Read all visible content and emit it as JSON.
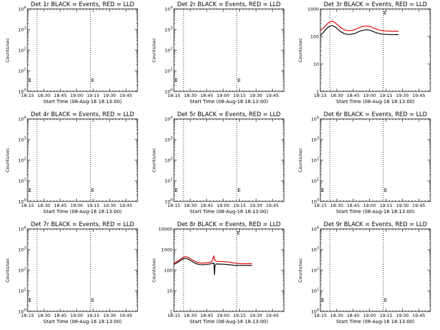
{
  "chart_data": [
    {
      "id": "det1r",
      "type": "line",
      "title": "Det 1r BLACK = Events, RED = LLD",
      "xlabel": "Start Time (08-Aug-16 18:13:00)",
      "ylabel": "Counts/sec",
      "yscale": "log",
      "ylim_exp": [
        0,
        4
      ],
      "ytick_exp": [
        0,
        1,
        2,
        3,
        4
      ],
      "xtick_labels": [
        "18:15",
        "18:30",
        "18:45",
        "19:00",
        "19:15",
        "19:30",
        "19:45"
      ],
      "xlim_minutes": [
        15,
        53
      ],
      "vlines_minutes": [
        18.3,
        36.7
      ],
      "series": [],
      "markers": [
        {
          "label": "E",
          "x_min": 15.3
        },
        {
          "label": "E",
          "x_min": 37.0
        }
      ]
    },
    {
      "id": "det2r",
      "type": "line",
      "title": "Det 2r BLACK = Events, RED = LLD",
      "xlabel": "Start Time (08-Aug-16 18:13:00)",
      "ylabel": "Counts/sec",
      "yscale": "log",
      "ylim_exp": [
        0,
        4
      ],
      "ytick_exp": [
        0,
        1,
        2,
        3,
        4
      ],
      "xtick_labels": [
        "18:15",
        "18:30",
        "18:45",
        "19:00",
        "19:15",
        "19:30",
        "19:45"
      ],
      "xlim_minutes": [
        15,
        53
      ],
      "vlines_minutes": [
        18.3,
        36.7
      ],
      "series": [],
      "markers": [
        {
          "label": "E",
          "x_min": 15.3
        },
        {
          "label": "E",
          "x_min": 37.0
        }
      ]
    },
    {
      "id": "det3r",
      "type": "line",
      "title": "Det 3r BLACK = Events, RED = LLD",
      "xlabel": "Start Time (08-Aug-16 18:13:00)",
      "ylabel": "Counts/sec",
      "yscale": "log",
      "ylim": [
        1,
        1000
      ],
      "yticks": [
        1,
        10,
        100,
        1000
      ],
      "ytick_labels": [
        "1",
        "10",
        "100",
        "1000"
      ],
      "xtick_labels": [
        "18:15",
        "18:30",
        "18:45",
        "19:00",
        "19:15",
        "19:30",
        "19:45"
      ],
      "xlim_minutes": [
        15,
        53
      ],
      "vlines_minutes": [
        18.3,
        36.7
      ],
      "series": [
        {
          "color": "#e00000",
          "x": [
            15,
            16,
            17,
            18,
            19,
            20,
            21,
            22,
            23,
            24,
            25,
            26,
            27,
            28,
            29,
            30,
            31,
            32,
            33,
            34,
            35,
            36,
            37,
            38,
            39,
            40,
            41,
            42
          ],
          "values": [
            160,
            200,
            260,
            330,
            360,
            320,
            260,
            210,
            180,
            165,
            160,
            165,
            180,
            200,
            220,
            235,
            240,
            230,
            210,
            190,
            175,
            165,
            160,
            158,
            156,
            155,
            155,
            155
          ]
        },
        {
          "color": "#000000",
          "x": [
            15,
            16,
            17,
            18,
            19,
            20,
            21,
            22,
            23,
            24,
            25,
            26,
            27,
            28,
            29,
            30,
            31,
            32,
            33,
            34,
            35,
            36,
            37,
            38,
            39,
            40,
            41,
            42
          ],
          "values": [
            110,
            140,
            185,
            230,
            250,
            225,
            185,
            150,
            130,
            120,
            118,
            122,
            130,
            145,
            160,
            170,
            175,
            170,
            155,
            140,
            130,
            123,
            120,
            118,
            117,
            117,
            116,
            116
          ]
        }
      ],
      "markers": [
        {
          "label": "E",
          "x_min": 36.8
        }
      ]
    },
    {
      "id": "det4r",
      "type": "line",
      "title": "Det 4r BLACK = Events, RED = LLD",
      "xlabel": "Start Time (08-Aug-16 18:13:00)",
      "ylabel": "Counts/sec",
      "yscale": "log",
      "ylim_exp": [
        0,
        4
      ],
      "ytick_exp": [
        0,
        1,
        2,
        3,
        4
      ],
      "xtick_labels": [
        "18:15",
        "18:30",
        "18:45",
        "19:00",
        "19:15",
        "19:30",
        "19:45"
      ],
      "xlim_minutes": [
        15,
        53
      ],
      "vlines_minutes": [
        18.3,
        36.7
      ],
      "series": [],
      "markers": [
        {
          "label": "E",
          "x_min": 15.3
        },
        {
          "label": "E",
          "x_min": 37.0
        }
      ]
    },
    {
      "id": "det5r",
      "type": "line",
      "title": "Det 5r BLACK = Events, RED = LLD",
      "xlabel": "Start Time (08-Aug-16 18:13:00)",
      "ylabel": "Counts/sec",
      "yscale": "log",
      "ylim_exp": [
        0,
        4
      ],
      "ytick_exp": [
        0,
        1,
        2,
        3,
        4
      ],
      "xtick_labels": [
        "18:15",
        "18:30",
        "18:45",
        "19:00",
        "19:15",
        "19:30",
        "19:45"
      ],
      "xlim_minutes": [
        15,
        53
      ],
      "vlines_minutes": [
        18.3,
        36.7
      ],
      "series": [],
      "markers": [
        {
          "label": "E",
          "x_min": 15.3
        },
        {
          "label": "E",
          "x_min": 37.0
        }
      ]
    },
    {
      "id": "det6r",
      "type": "line",
      "title": "Det 6r BLACK = Events, RED = LLD",
      "xlabel": "Start Time (08-Aug-16 18:13:00)",
      "ylabel": "Counts/sec",
      "yscale": "log",
      "ylim_exp": [
        0,
        4
      ],
      "ytick_exp": [
        0,
        1,
        2,
        3,
        4
      ],
      "xtick_labels": [
        "18:15",
        "18:30",
        "18:45",
        "19:00",
        "19:15",
        "19:30",
        "19:45"
      ],
      "xlim_minutes": [
        15,
        53
      ],
      "vlines_minutes": [
        18.3,
        36.7
      ],
      "series": [],
      "markers": [
        {
          "label": "E",
          "x_min": 15.3
        },
        {
          "label": "E",
          "x_min": 37.0
        }
      ]
    },
    {
      "id": "det7r",
      "type": "line",
      "title": "Det 7r BLACK = Events, RED = LLD",
      "xlabel": "Start Time (08-Aug-16 18:13:00)",
      "ylabel": "Counts/sec",
      "yscale": "log",
      "ylim_exp": [
        0,
        4
      ],
      "ytick_exp": [
        0,
        1,
        2,
        3,
        4
      ],
      "xtick_labels": [
        "18:15",
        "18:30",
        "18:45",
        "19:00",
        "19:15",
        "19:30",
        "19:45"
      ],
      "xlim_minutes": [
        15,
        53
      ],
      "vlines_minutes": [
        18.3,
        36.7
      ],
      "series": [],
      "markers": [
        {
          "label": "E",
          "x_min": 15.3
        },
        {
          "label": "E",
          "x_min": 37.0
        }
      ]
    },
    {
      "id": "det8r",
      "type": "line",
      "title": "Det 8r BLACK = Events, RED = LLD",
      "xlabel": "Start Time (08-Aug-16 18:13:00)",
      "ylabel": "Counts/sec",
      "yscale": "log",
      "ylim": [
        1,
        10000
      ],
      "yticks": [
        1,
        10,
        100,
        1000,
        10000
      ],
      "ytick_labels": [
        "1",
        "10",
        "100",
        "1000",
        "10000"
      ],
      "xtick_labels": [
        "18:15",
        "18:30",
        "18:45",
        "19:00",
        "19:15",
        "19:30",
        "19:45"
      ],
      "xlim_minutes": [
        15,
        53
      ],
      "vlines_minutes": [
        18.3,
        36.7
      ],
      "series": [
        {
          "color": "#e00000",
          "x": [
            15,
            16,
            17,
            18,
            19,
            20,
            21,
            22,
            23,
            24,
            25,
            26,
            27,
            28,
            28.8,
            29.1,
            29.5,
            30,
            31,
            32,
            33,
            34,
            35,
            36,
            37,
            38,
            39,
            40,
            41,
            42
          ],
          "values": [
            220,
            260,
            320,
            400,
            460,
            410,
            340,
            280,
            240,
            225,
            220,
            225,
            235,
            250,
            480,
            300,
            275,
            270,
            265,
            260,
            255,
            245,
            235,
            220,
            210,
            205,
            205,
            205,
            205,
            205
          ]
        },
        {
          "color": "#000000",
          "x": [
            15,
            16,
            17,
            18,
            19,
            20,
            21,
            22,
            23,
            24,
            25,
            26,
            27,
            28,
            28.8,
            29.0,
            29.2,
            29.5,
            30,
            31,
            32,
            33,
            34,
            35,
            36,
            37,
            38,
            39,
            40,
            41,
            42
          ],
          "values": [
            190,
            225,
            280,
            340,
            380,
            340,
            280,
            230,
            200,
            188,
            185,
            188,
            195,
            205,
            220,
            60,
            170,
            200,
            200,
            198,
            195,
            190,
            185,
            178,
            170,
            168,
            168,
            168,
            168,
            168,
            168
          ]
        }
      ],
      "markers": [
        {
          "label": "E",
          "x_min": 36.8
        }
      ]
    },
    {
      "id": "det9r",
      "type": "line",
      "title": "Det 9r BLACK = Events, RED = LLD",
      "xlabel": "Start Time (08-Aug-16 18:13:00)",
      "ylabel": "Counts/sec",
      "yscale": "log",
      "ylim_exp": [
        0,
        4
      ],
      "ytick_exp": [
        0,
        1,
        2,
        3,
        4
      ],
      "xtick_labels": [
        "18:15",
        "18:30",
        "18:45",
        "19:00",
        "19:15",
        "19:30",
        "19:45"
      ],
      "xlim_minutes": [
        15,
        53
      ],
      "vlines_minutes": [
        18.3,
        36.7
      ],
      "series": [],
      "markers": [
        {
          "label": "E",
          "x_min": 15.3
        },
        {
          "label": "E",
          "x_min": 37.0
        }
      ]
    }
  ]
}
